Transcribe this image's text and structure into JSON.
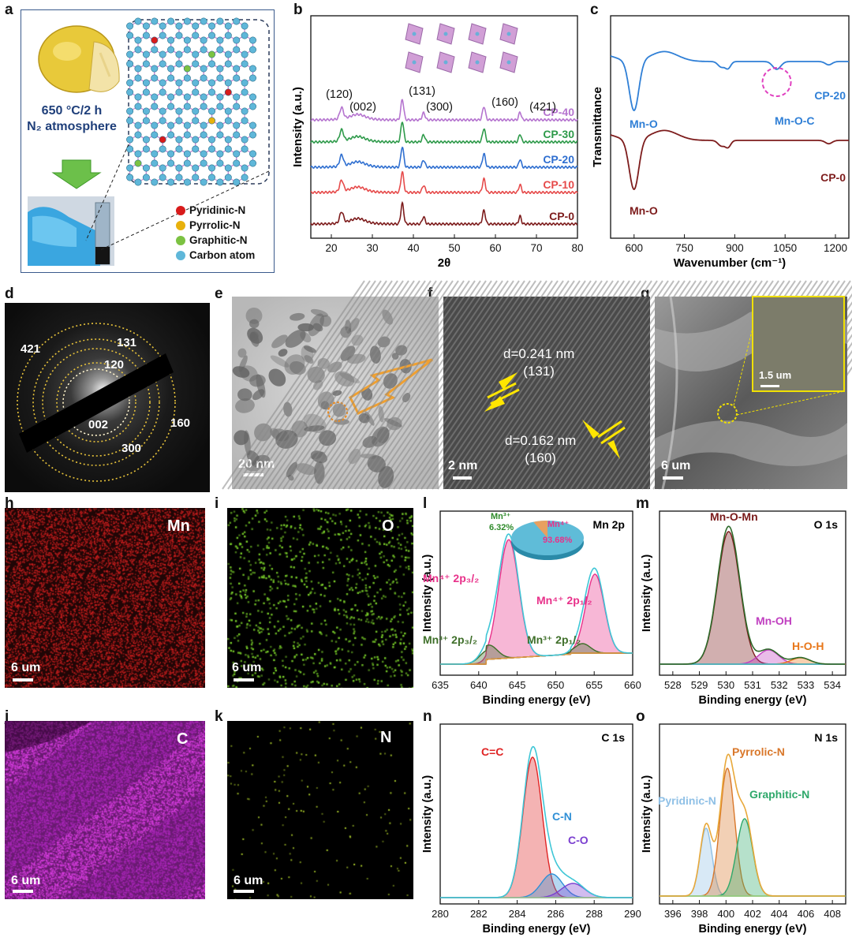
{
  "labels": [
    "a",
    "b",
    "c",
    "d",
    "e",
    "f",
    "g",
    "h",
    "i",
    "j",
    "k",
    "l",
    "m",
    "n",
    "o"
  ],
  "panel_a": {
    "condition_line1": "650 °C/2 h",
    "condition_line2": "N₂ atmosphere",
    "legend": [
      {
        "name": "Pyridinic-N",
        "color": "#d81b1b"
      },
      {
        "name": "Pyrrolic-N",
        "color": "#e8b10c"
      },
      {
        "name": "Graphitic-N",
        "color": "#7cc242"
      },
      {
        "name": "Carbon atom",
        "color": "#5fb7d9"
      }
    ]
  },
  "panel_d": {
    "rings": [
      "421",
      "131",
      "120",
      "002",
      "300",
      "160"
    ]
  },
  "panel_e": {
    "scale": "20 nm"
  },
  "panel_f": {
    "d1": "d=0.241 nm",
    "p1": "(131)",
    "d2": "d=0.162 nm",
    "p2": "(160)",
    "scale": "2 nm"
  },
  "panel_g": {
    "scale": "6 um",
    "inset_scale": "1.5 um"
  },
  "maps": [
    {
      "element": "Mn",
      "scale": "6 um"
    },
    {
      "element": "O",
      "scale": "6 um"
    },
    {
      "element": "C",
      "scale": "6 um"
    },
    {
      "element": "N",
      "scale": "6 um"
    }
  ],
  "chart_data": [
    {
      "panel": "b",
      "type": "line",
      "xlabel": "2θ",
      "ylabel": "Intensity (a.u.)",
      "xlim": [
        15,
        80
      ],
      "xticks": [
        20,
        30,
        40,
        50,
        60,
        70,
        80
      ],
      "peaks": [
        {
          "label": "(120)",
          "x": 22.5
        },
        {
          "label": "(002)",
          "x": 26.5
        },
        {
          "label": "(131)",
          "x": 37.3
        },
        {
          "label": "(300)",
          "x": 42.5
        },
        {
          "label": "(160)",
          "x": 57.2
        },
        {
          "label": "(421)",
          "x": 66.0
        }
      ],
      "series": [
        {
          "name": "CP-40",
          "color": "#b574cf"
        },
        {
          "name": "CP-30",
          "color": "#2e9a4a"
        },
        {
          "name": "CP-20",
          "color": "#2f6fd0"
        },
        {
          "name": "CP-10",
          "color": "#e64b4b"
        },
        {
          "name": "CP-0",
          "color": "#7d1c1c"
        }
      ]
    },
    {
      "panel": "c",
      "type": "line",
      "xlabel": "Wavenumber (cm⁻¹)",
      "ylabel": "Transmittance",
      "xlim": [
        530,
        1240
      ],
      "xticks": [
        600,
        750,
        900,
        1050,
        1200
      ],
      "series": [
        {
          "name": "CP-20",
          "color": "#2f7fd6",
          "annotations": [
            "Mn-O",
            "Mn-O-C"
          ]
        },
        {
          "name": "CP-0",
          "color": "#7d1c1c",
          "annotations": [
            "Mn-O"
          ]
        }
      ]
    },
    {
      "panel": "l",
      "type": "area",
      "title": "Mn 2p",
      "xlabel": "Binding energy (eV)",
      "ylabel": "Intensity (a.u.)",
      "xlim": [
        635,
        660
      ],
      "xticks": [
        635,
        640,
        645,
        650,
        655,
        660
      ],
      "components": [
        {
          "name": "Mn⁴⁺ 2p₃/₂",
          "center": 643.9,
          "color": "#e8318a"
        },
        {
          "name": "Mn³⁺ 2p₃/₂",
          "center": 641.3,
          "color": "#3f6f2a"
        },
        {
          "name": "Mn⁴⁺ 2p₁/₂",
          "center": 655.1,
          "color": "#e8318a"
        },
        {
          "name": "Mn³⁺ 2p₁/₂",
          "center": 653.5,
          "color": "#3f6f2a"
        }
      ],
      "pie": [
        {
          "name": "Mn³⁺",
          "value": 6.32,
          "label": "6.32%"
        },
        {
          "name": "Mn⁴⁺",
          "value": 93.68,
          "label": "93.68%"
        }
      ]
    },
    {
      "panel": "m",
      "type": "area",
      "title": "O 1s",
      "xlabel": "Binding energy (eV)",
      "ylabel": "Intensity (a.u.)",
      "xlim": [
        527.5,
        534.5
      ],
      "xticks": [
        528,
        529,
        530,
        531,
        532,
        533,
        534
      ],
      "components": [
        {
          "name": "Mn-O-Mn",
          "center": 530.1,
          "color": "#7a1b1b"
        },
        {
          "name": "Mn-OH",
          "center": 531.6,
          "color": "#c03fc0"
        },
        {
          "name": "H-O-H",
          "center": 532.8,
          "color": "#e8771a"
        }
      ]
    },
    {
      "panel": "n",
      "type": "area",
      "title": "C 1s",
      "xlabel": "Binding energy (eV)",
      "ylabel": "Intensity (a.u.)",
      "xlim": [
        280,
        290
      ],
      "xticks": [
        280,
        282,
        284,
        286,
        288,
        290
      ],
      "components": [
        {
          "name": "C=C",
          "center": 284.8,
          "color": "#e02424"
        },
        {
          "name": "C-N",
          "center": 285.8,
          "color": "#2f8fd6"
        },
        {
          "name": "C-O",
          "center": 286.9,
          "color": "#7b3fd0"
        }
      ]
    },
    {
      "panel": "o",
      "type": "area",
      "title": "N 1s",
      "xlabel": "Binding energy (eV)",
      "ylabel": "Intensity (a.u.)",
      "xlim": [
        395,
        409
      ],
      "xticks": [
        396,
        398,
        400,
        402,
        404,
        406,
        408
      ],
      "components": [
        {
          "name": "Pyridinic-N",
          "center": 398.5,
          "color": "#8fc0e6"
        },
        {
          "name": "Pyrrolic-N",
          "center": 400.1,
          "color": "#d9772a"
        },
        {
          "name": "Graphitic-N",
          "center": 401.4,
          "color": "#2ea86a"
        }
      ]
    }
  ]
}
